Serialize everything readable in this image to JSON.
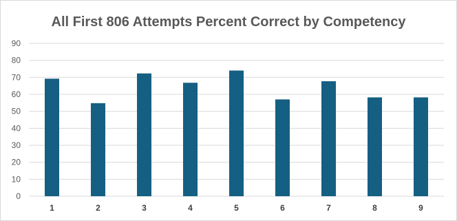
{
  "chart_data": {
    "type": "bar",
    "title": "All First 806 Attempts Percent Correct by Competency",
    "xlabel": "",
    "ylabel": "",
    "categories": [
      "1",
      "2",
      "3",
      "4",
      "5",
      "6",
      "7",
      "8",
      "9"
    ],
    "values": [
      69.2,
      54.8,
      72.3,
      66.8,
      74.0,
      57.0,
      67.7,
      58.2,
      58.2
    ],
    "ylim": [
      0,
      90
    ],
    "yticks": [
      "0",
      "10",
      "20",
      "30",
      "40",
      "50",
      "60",
      "70",
      "80",
      "90"
    ],
    "grid": true,
    "legend": "none",
    "bar_color": "#155F83",
    "grid_color": "#d9d9d9"
  }
}
